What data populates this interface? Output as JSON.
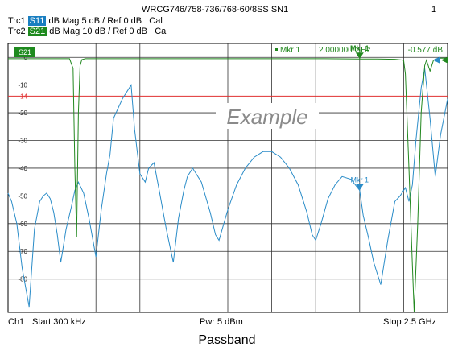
{
  "header": {
    "title": "WRCG746/758-736/768-60/8SS SN1",
    "page_number": "1",
    "traces": [
      {
        "name": "Trc1",
        "chip": "S11",
        "format": "dB Mag",
        "scale": "5 dB /",
        "ref": "Ref 0 dB",
        "cal": "Cal",
        "color": "#1a7fc1"
      },
      {
        "name": "Trc2",
        "chip": "S21",
        "format": "dB Mag",
        "scale": "10 dB /",
        "ref": "Ref 0 dB",
        "cal": "Cal",
        "color": "#1e8a1e"
      }
    ]
  },
  "plot": {
    "active_trace_label": "S21",
    "watermark": "Example",
    "marker_readout": {
      "label": "Mkr 1",
      "frequency": "2.000000 GHz",
      "value": "-0.577 dB"
    },
    "marker_labels": [
      "Mkr 1",
      "Mkr 1"
    ]
  },
  "footer": {
    "channel": "Ch1",
    "start": "Start 300 kHz",
    "power": "Pwr 5 dBm",
    "stop": "Stop 2.5 GHz"
  },
  "caption": "Passband",
  "chart_data": {
    "type": "line",
    "xlabel": "",
    "ylabel": "",
    "x_range": [
      0.0003,
      2.5
    ],
    "ylim": [
      -90,
      0
    ],
    "y_ticks": [
      0,
      -10,
      -20,
      -30,
      -40,
      -50,
      -60,
      -70,
      -80
    ],
    "grid": true,
    "limit_line": {
      "value": -14,
      "label": "-14",
      "color": "#e03030"
    },
    "series": [
      {
        "name": "S11",
        "color": "#2a8cc8",
        "x": [
          0,
          0.02,
          0.05,
          0.08,
          0.12,
          0.15,
          0.18,
          0.2,
          0.22,
          0.24,
          0.26,
          0.28,
          0.3,
          0.33,
          0.36,
          0.38,
          0.4,
          0.43,
          0.46,
          0.5,
          0.53,
          0.56,
          0.58,
          0.6,
          0.65,
          0.7,
          0.72,
          0.75,
          0.78,
          0.8,
          0.83,
          0.86,
          0.9,
          0.94,
          0.97,
          1.0,
          1.02,
          1.05,
          1.1,
          1.15,
          1.18,
          1.2,
          1.25,
          1.3,
          1.35,
          1.4,
          1.45,
          1.5,
          1.55,
          1.6,
          1.65,
          1.7,
          1.73,
          1.75,
          1.78,
          1.82,
          1.86,
          1.9,
          1.95,
          2.0,
          2.02,
          2.05,
          2.08,
          2.12,
          2.16,
          2.2,
          2.23,
          2.26,
          2.28,
          2.3,
          2.32,
          2.35,
          2.37,
          2.4,
          2.43,
          2.46,
          2.5
        ],
        "values": [
          -49,
          -52,
          -60,
          -76,
          -90,
          -62,
          -52,
          -50,
          -49,
          -51,
          -56,
          -64,
          -74,
          -62,
          -54,
          -48,
          -45,
          -49,
          -58,
          -72,
          -55,
          -42,
          -35,
          -22,
          -15,
          -10,
          -26,
          -42,
          -45,
          -40,
          -38,
          -48,
          -62,
          -74,
          -58,
          -48,
          -43,
          -40,
          -45,
          -56,
          -64,
          -66,
          -55,
          -46,
          -40,
          -36,
          -34,
          -34,
          -36,
          -40,
          -46,
          -56,
          -64,
          -66,
          -60,
          -51,
          -46,
          -43,
          -44,
          -48,
          -57,
          -65,
          -74,
          -82,
          -66,
          -52,
          -50,
          -47,
          -52,
          -46,
          -30,
          -11,
          -4,
          -22,
          -43,
          -28,
          -15
        ]
      },
      {
        "name": "S21",
        "color": "#22881f",
        "x": [
          0,
          0.1,
          0.2,
          0.3,
          0.35,
          0.37,
          0.38,
          0.39,
          0.4,
          0.41,
          0.42,
          0.44,
          0.5,
          0.6,
          0.8,
          1.0,
          1.2,
          1.5,
          1.8,
          2.0,
          2.1,
          2.2,
          2.25,
          2.26,
          2.28,
          2.3,
          2.31,
          2.33,
          2.35,
          2.37,
          2.38,
          2.4,
          2.42,
          2.44,
          2.46,
          2.5
        ],
        "values": [
          -0.5,
          -0.5,
          -0.5,
          -0.5,
          -0.5,
          -4,
          -40,
          -65,
          -20,
          -3,
          -0.8,
          -0.5,
          -0.5,
          -0.5,
          -0.5,
          -0.5,
          -0.5,
          -0.5,
          -0.5,
          -0.577,
          -0.6,
          -0.7,
          -1,
          -6,
          -40,
          -75,
          -92,
          -60,
          -20,
          -3,
          -1,
          -5,
          -1,
          -0.5,
          -0.3,
          -0.3
        ]
      }
    ],
    "markers": [
      {
        "name": "Mkr 1",
        "trace": "S21",
        "x": 2.0,
        "y": -0.577
      },
      {
        "name": "Mkr 1",
        "trace": "S11",
        "x": 2.0,
        "y": -48
      }
    ]
  }
}
